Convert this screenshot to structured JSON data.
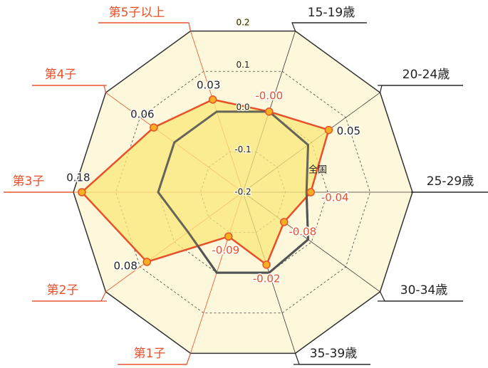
{
  "chart_data": {
    "type": "radar",
    "categories": [
      "15-19歳",
      "20-24歳",
      "25-29歳",
      "30-34歳",
      "35-39歳",
      "第1子",
      "第2子",
      "第3子",
      "第4子",
      "第5子以上"
    ],
    "series": [
      {
        "color": "#e8502a",
        "fill": "#f9e87a",
        "values": [
          0.0,
          0.05,
          -0.04,
          -0.08,
          -0.02,
          -0.09,
          0.08,
          0.18,
          0.06,
          0.03
        ],
        "value_labels": [
          "-0.00",
          "0.05",
          "-0.04",
          "-0.08",
          "-0.02",
          "-0.09",
          "0.08",
          "0.18",
          "0.06",
          "0.03"
        ]
      },
      {
        "name": "全国",
        "color": "#555555",
        "values": [
          0.0,
          -0.01,
          -0.05,
          -0.01,
          0.0,
          0.0,
          -0.04,
          0.0,
          0.0,
          0.0
        ]
      }
    ],
    "ylim": [
      -0.2,
      0.2
    ],
    "yticks": [
      -0.2,
      -0.1,
      {
        "value": 0,
        "label": "0.0"
      },
      0.1,
      0.2
    ],
    "grid": true
  }
}
